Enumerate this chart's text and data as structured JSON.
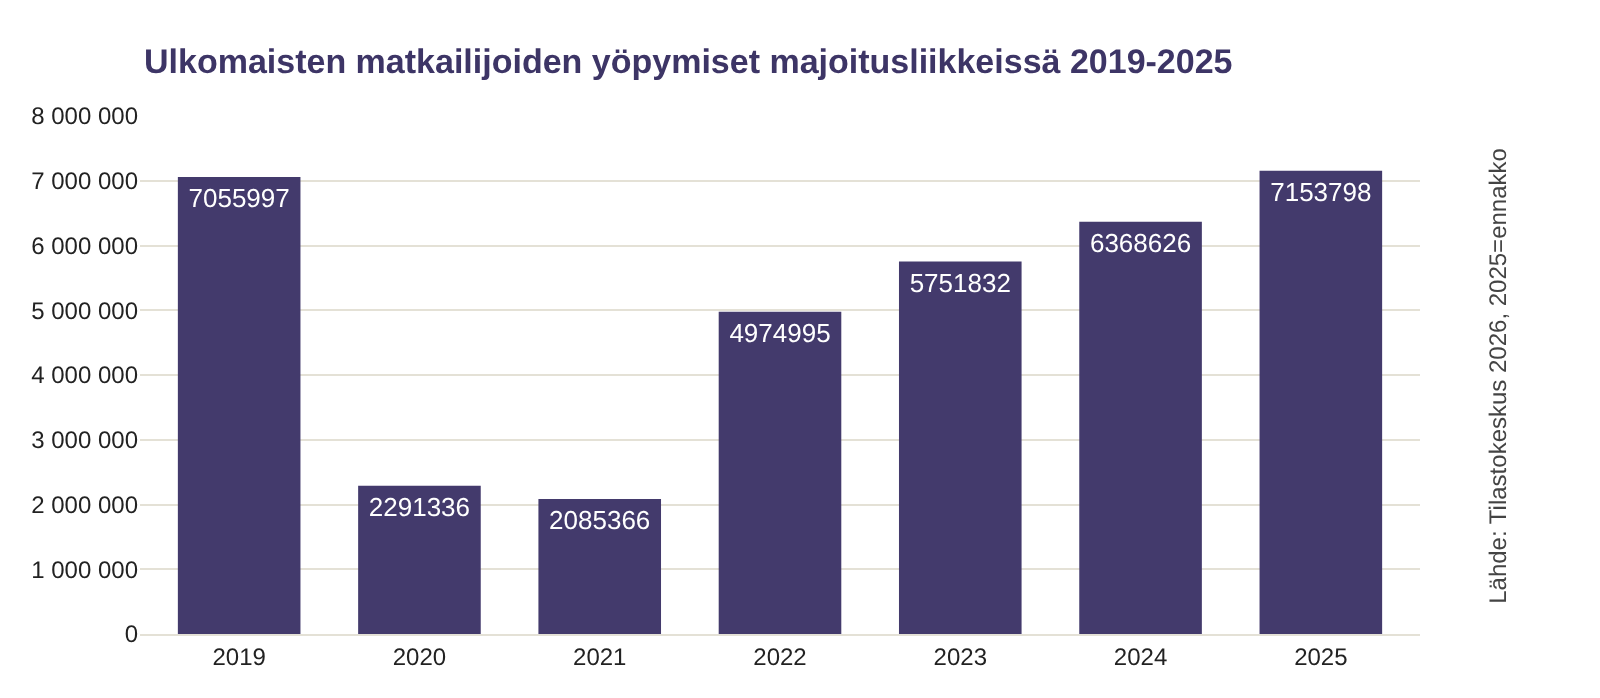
{
  "chart_data": {
    "type": "bar",
    "title": "Ulkomaisten matkailijoiden yöpymiset majoitusliikkeissä 2019-2025",
    "categories": [
      "2019",
      "2020",
      "2021",
      "2022",
      "2023",
      "2024",
      "2025"
    ],
    "values": [
      7055997,
      2291336,
      2085366,
      4974995,
      5751832,
      6368626,
      7153798
    ],
    "color": "#433a6c",
    "ylim": [
      0,
      8000000
    ],
    "yticks": [
      0,
      {
        "value": 1000000,
        "label": "1 000 000"
      },
      {
        "value": 2000000,
        "label": "2 000 000"
      },
      {
        "value": 3000000,
        "label": "3 000 000"
      },
      {
        "value": 4000000,
        "label": "4 000 000"
      },
      {
        "value": 5000000,
        "label": "5 000 000"
      },
      {
        "value": 6000000,
        "label": "6 000 000"
      },
      {
        "value": 7000000,
        "label": "7 000 000"
      },
      {
        "value": 8000000,
        "label": "8 000 000"
      }
    ],
    "grid": "y",
    "data_labels": true,
    "annotations": [
      "Lähde: Tilastokeskus 2026, 2025=ennakko"
    ]
  }
}
